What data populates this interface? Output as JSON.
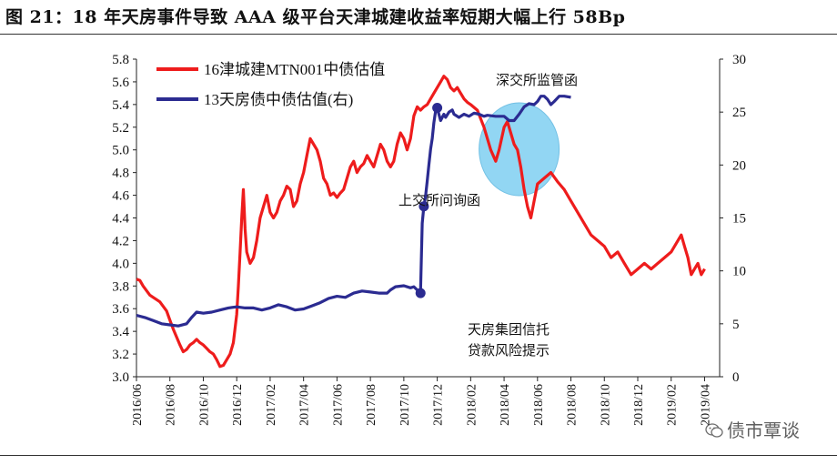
{
  "title": "图 21：18 年天房事件导致 AAA 级平台天津城建收益率短期大幅上行 58Bp",
  "watermark": "债市覃谈",
  "chart_data": {
    "type": "line",
    "x_ticks": [
      "2016/06",
      "2016/08",
      "2016/10",
      "2016/12",
      "2017/02",
      "2017/04",
      "2017/06",
      "2017/08",
      "2017/10",
      "2017/12",
      "2018/02",
      "2018/04",
      "2018/06",
      "2018/08",
      "2018/10",
      "2018/12",
      "2019/02",
      "2019/04"
    ],
    "y_left": {
      "min": 3.0,
      "max": 5.8,
      "ticks": [
        "3.0",
        "3.2",
        "3.4",
        "3.6",
        "3.8",
        "4.0",
        "4.2",
        "4.4",
        "4.6",
        "4.8",
        "5.0",
        "5.2",
        "5.4",
        "5.6",
        "5.8"
      ]
    },
    "y_right": {
      "min": 0,
      "max": 30,
      "ticks": [
        "0",
        "5",
        "10",
        "15",
        "20",
        "25",
        "30"
      ]
    },
    "grid": false,
    "legend_position": "top-left",
    "series": [
      {
        "name": "16津城建MTN001中债估值",
        "axis": "left",
        "color": "#ee1c1c",
        "points": [
          [
            0,
            3.86
          ],
          [
            0.1,
            3.85
          ],
          [
            0.2,
            3.8
          ],
          [
            0.3,
            3.76
          ],
          [
            0.4,
            3.72
          ],
          [
            0.5,
            3.7
          ],
          [
            0.6,
            3.68
          ],
          [
            0.7,
            3.66
          ],
          [
            0.8,
            3.62
          ],
          [
            0.9,
            3.58
          ],
          [
            1.0,
            3.5
          ],
          [
            1.1,
            3.42
          ],
          [
            1.2,
            3.35
          ],
          [
            1.3,
            3.28
          ],
          [
            1.4,
            3.22
          ],
          [
            1.5,
            3.24
          ],
          [
            1.6,
            3.28
          ],
          [
            1.7,
            3.3
          ],
          [
            1.8,
            3.33
          ],
          [
            1.9,
            3.3
          ],
          [
            2.0,
            3.28
          ],
          [
            2.1,
            3.25
          ],
          [
            2.2,
            3.22
          ],
          [
            2.3,
            3.2
          ],
          [
            2.4,
            3.15
          ],
          [
            2.5,
            3.09
          ],
          [
            2.6,
            3.1
          ],
          [
            2.7,
            3.15
          ],
          [
            2.8,
            3.2
          ],
          [
            2.9,
            3.3
          ],
          [
            3.0,
            3.55
          ],
          [
            3.05,
            3.8
          ],
          [
            3.1,
            4.1
          ],
          [
            3.15,
            4.4
          ],
          [
            3.2,
            4.65
          ],
          [
            3.25,
            4.3
          ],
          [
            3.3,
            4.1
          ],
          [
            3.4,
            4.0
          ],
          [
            3.5,
            4.05
          ],
          [
            3.6,
            4.2
          ],
          [
            3.7,
            4.4
          ],
          [
            3.8,
            4.5
          ],
          [
            3.9,
            4.6
          ],
          [
            4.0,
            4.45
          ],
          [
            4.1,
            4.4
          ],
          [
            4.2,
            4.45
          ],
          [
            4.3,
            4.55
          ],
          [
            4.4,
            4.6
          ],
          [
            4.5,
            4.68
          ],
          [
            4.6,
            4.65
          ],
          [
            4.7,
            4.5
          ],
          [
            4.8,
            4.55
          ],
          [
            4.9,
            4.7
          ],
          [
            5.0,
            4.8
          ],
          [
            5.1,
            4.95
          ],
          [
            5.2,
            5.1
          ],
          [
            5.3,
            5.05
          ],
          [
            5.4,
            5.0
          ],
          [
            5.5,
            4.9
          ],
          [
            5.6,
            4.75
          ],
          [
            5.7,
            4.7
          ],
          [
            5.8,
            4.6
          ],
          [
            5.9,
            4.62
          ],
          [
            6.0,
            4.58
          ],
          [
            6.1,
            4.62
          ],
          [
            6.2,
            4.65
          ],
          [
            6.3,
            4.75
          ],
          [
            6.4,
            4.85
          ],
          [
            6.5,
            4.9
          ],
          [
            6.6,
            4.8
          ],
          [
            6.7,
            4.85
          ],
          [
            6.8,
            4.88
          ],
          [
            6.9,
            4.95
          ],
          [
            7.0,
            4.9
          ],
          [
            7.1,
            4.85
          ],
          [
            7.2,
            4.95
          ],
          [
            7.3,
            5.05
          ],
          [
            7.4,
            5.0
          ],
          [
            7.5,
            4.9
          ],
          [
            7.6,
            4.85
          ],
          [
            7.7,
            4.9
          ],
          [
            7.8,
            5.05
          ],
          [
            7.9,
            5.15
          ],
          [
            8.0,
            5.1
          ],
          [
            8.1,
            5.0
          ],
          [
            8.2,
            5.1
          ],
          [
            8.3,
            5.3
          ],
          [
            8.4,
            5.38
          ],
          [
            8.5,
            5.35
          ],
          [
            8.6,
            5.38
          ],
          [
            8.7,
            5.4
          ],
          [
            8.8,
            5.45
          ],
          [
            8.9,
            5.5
          ],
          [
            9.0,
            5.55
          ],
          [
            9.1,
            5.6
          ],
          [
            9.2,
            5.65
          ],
          [
            9.3,
            5.62
          ],
          [
            9.4,
            5.55
          ],
          [
            9.5,
            5.52
          ],
          [
            9.6,
            5.55
          ],
          [
            9.7,
            5.5
          ],
          [
            9.8,
            5.45
          ],
          [
            9.9,
            5.42
          ],
          [
            10.0,
            5.4
          ],
          [
            10.2,
            5.35
          ],
          [
            10.4,
            5.2
          ],
          [
            10.6,
            5.0
          ],
          [
            10.75,
            4.9
          ],
          [
            10.85,
            5.0
          ],
          [
            11.0,
            5.2
          ],
          [
            11.1,
            5.25
          ],
          [
            11.2,
            5.15
          ],
          [
            11.3,
            5.05
          ],
          [
            11.4,
            5.0
          ],
          [
            11.5,
            4.85
          ],
          [
            11.6,
            4.65
          ],
          [
            11.7,
            4.5
          ],
          [
            11.8,
            4.4
          ],
          [
            11.9,
            4.55
          ],
          [
            12.0,
            4.7
          ],
          [
            12.2,
            4.75
          ],
          [
            12.4,
            4.8
          ],
          [
            12.6,
            4.72
          ],
          [
            12.8,
            4.65
          ],
          [
            13.0,
            4.55
          ],
          [
            13.2,
            4.45
          ],
          [
            13.4,
            4.35
          ],
          [
            13.6,
            4.25
          ],
          [
            13.8,
            4.2
          ],
          [
            14.0,
            4.15
          ],
          [
            14.2,
            4.05
          ],
          [
            14.4,
            4.1
          ],
          [
            14.6,
            4.0
          ],
          [
            14.8,
            3.9
          ],
          [
            15.0,
            3.95
          ],
          [
            15.2,
            4.0
          ],
          [
            15.4,
            3.95
          ],
          [
            15.6,
            4.0
          ],
          [
            15.8,
            4.05
          ],
          [
            16.0,
            4.1
          ],
          [
            16.2,
            4.2
          ],
          [
            16.3,
            4.25
          ],
          [
            16.4,
            4.15
          ],
          [
            16.5,
            4.05
          ],
          [
            16.6,
            3.9
          ],
          [
            16.7,
            3.95
          ],
          [
            16.8,
            4.0
          ],
          [
            16.9,
            3.9
          ],
          [
            17.0,
            3.95
          ]
        ]
      },
      {
        "name": "13天房债中债估值(右)",
        "axis": "right",
        "color": "#2b2b91",
        "points": [
          [
            0,
            5.8
          ],
          [
            0.5,
            5.6
          ],
          [
            1.0,
            5.3
          ],
          [
            1.5,
            5.0
          ],
          [
            2.0,
            4.9
          ],
          [
            2.5,
            4.8
          ],
          [
            3.0,
            5.0
          ],
          [
            3.3,
            5.6
          ],
          [
            3.6,
            6.1
          ],
          [
            4.0,
            6.0
          ],
          [
            4.5,
            6.1
          ],
          [
            5.0,
            6.3
          ],
          [
            5.5,
            6.5
          ],
          [
            6.0,
            6.6
          ],
          [
            6.5,
            6.5
          ],
          [
            7.0,
            6.5
          ],
          [
            7.5,
            6.3
          ],
          [
            8.0,
            6.5
          ],
          [
            8.5,
            6.8
          ],
          [
            9.0,
            6.6
          ],
          [
            9.5,
            6.3
          ],
          [
            10.0,
            6.4
          ],
          [
            10.5,
            6.7
          ],
          [
            11.0,
            7.0
          ],
          [
            11.5,
            7.4
          ],
          [
            12.0,
            7.6
          ],
          [
            12.5,
            7.5
          ],
          [
            13.0,
            7.9
          ],
          [
            13.5,
            8.1
          ],
          [
            14.0,
            8.0
          ],
          [
            14.5,
            7.9
          ],
          [
            15.0,
            7.9
          ],
          [
            15.2,
            8.2
          ],
          [
            15.5,
            8.5
          ],
          [
            16.0,
            8.6
          ],
          [
            16.4,
            8.4
          ],
          [
            16.6,
            8.5
          ],
          [
            17.0,
            7.9
          ],
          [
            17.1,
            14.5
          ],
          [
            17.2,
            16.1
          ],
          [
            17.3,
            17.0
          ],
          [
            17.4,
            18.5
          ],
          [
            17.5,
            20.0
          ],
          [
            17.6,
            21.5
          ],
          [
            17.7,
            22.5
          ],
          [
            17.8,
            24.0
          ],
          [
            17.9,
            25.1
          ],
          [
            18.0,
            25.4
          ],
          [
            18.1,
            24.8
          ],
          [
            18.2,
            24.2
          ],
          [
            18.3,
            24.5
          ],
          [
            18.4,
            24.8
          ],
          [
            18.5,
            24.5
          ],
          [
            18.7,
            25.0
          ],
          [
            18.9,
            25.2
          ],
          [
            19.0,
            24.8
          ],
          [
            19.3,
            24.5
          ],
          [
            19.6,
            24.8
          ],
          [
            19.9,
            24.6
          ],
          [
            20.2,
            24.9
          ],
          [
            20.5,
            24.8
          ],
          [
            20.8,
            24.6
          ],
          [
            21.0,
            24.7
          ],
          [
            21.5,
            24.6
          ],
          [
            22.0,
            24.6
          ],
          [
            22.3,
            24.2
          ],
          [
            22.6,
            24.2
          ],
          [
            22.9,
            24.8
          ],
          [
            23.2,
            25.5
          ],
          [
            23.5,
            25.8
          ],
          [
            23.8,
            25.7
          ],
          [
            24.0,
            26.0
          ],
          [
            24.2,
            26.5
          ],
          [
            24.4,
            26.5
          ],
          [
            24.6,
            26.2
          ],
          [
            24.8,
            25.7
          ],
          [
            25.0,
            26.0
          ],
          [
            25.3,
            26.5
          ],
          [
            25.6,
            26.5
          ],
          [
            26.0,
            26.4
          ]
        ]
      }
    ],
    "annotations": [
      {
        "text": "深交所监管函"
      },
      {
        "text": "上交所问询函"
      },
      {
        "text": "天房集团信托"
      },
      {
        "text": "贷款风险提示"
      }
    ]
  }
}
